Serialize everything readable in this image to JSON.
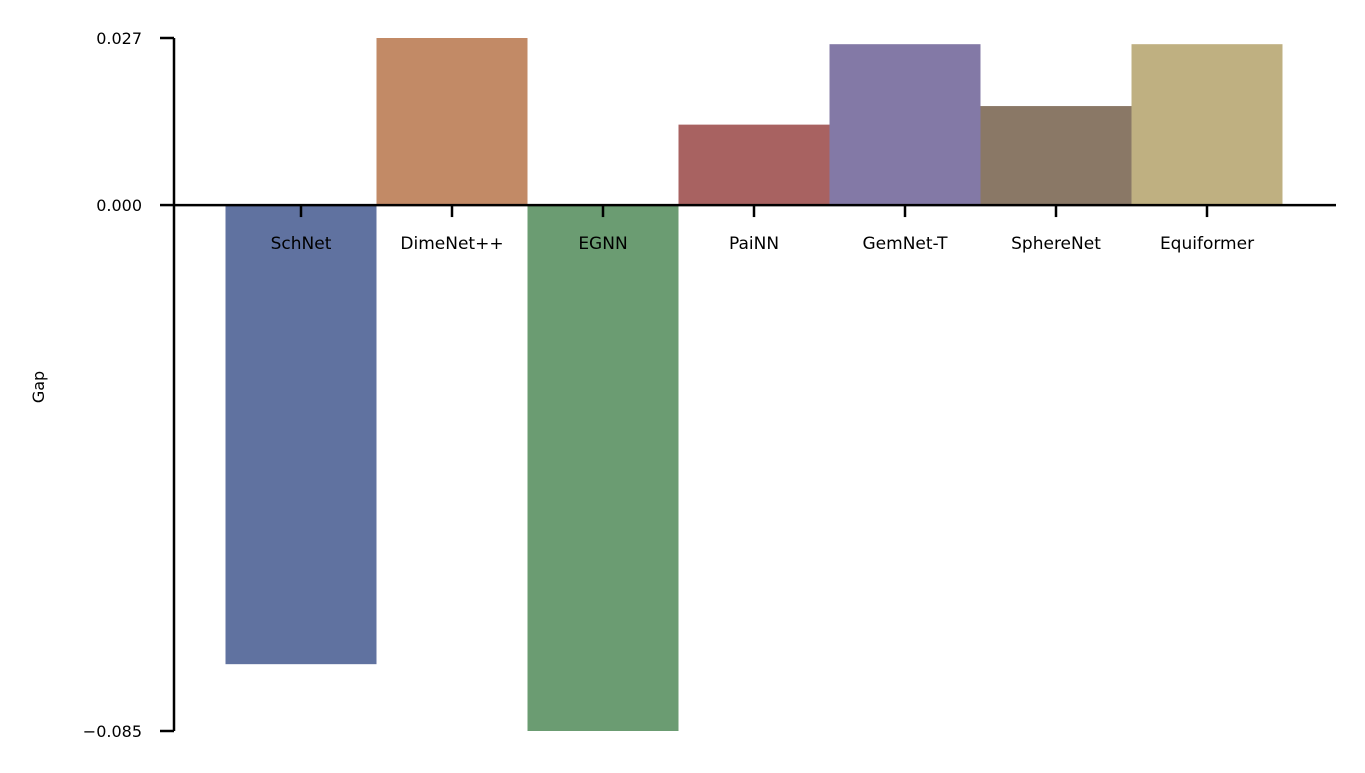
{
  "chart_data": {
    "type": "bar",
    "ylabel": "Gap",
    "xlabel": "",
    "ylim": [
      -0.085,
      0.027
    ],
    "yticks": [
      {
        "value": 0.027,
        "label": "0.027"
      },
      {
        "value": 0.0,
        "label": "0.000"
      },
      {
        "value": -0.085,
        "label": "−0.085"
      }
    ],
    "categories": [
      "SchNet",
      "DimeNet++",
      "EGNN",
      "PaiNN",
      "GemNet-T",
      "SphereNet",
      "Equiformer"
    ],
    "values": [
      -0.0742,
      0.027,
      -0.085,
      0.013,
      0.026,
      0.016,
      0.026
    ],
    "colors": [
      "#6072a0",
      "#c28a66",
      "#6b9c72",
      "#a86261",
      "#8379a6",
      "#8a7866",
      "#bfb081"
    ],
    "grid": false,
    "legend": "none"
  }
}
